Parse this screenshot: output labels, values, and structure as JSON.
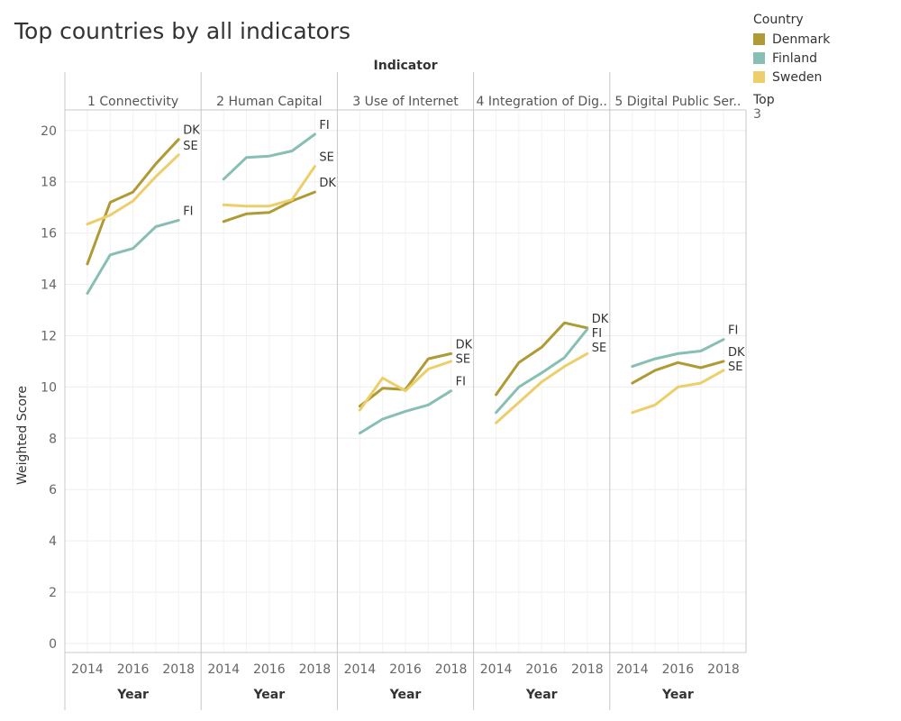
{
  "title": "Top countries by all indicators",
  "legend": {
    "title": "Country",
    "items": [
      {
        "name": "Denmark",
        "color": "#b09a35"
      },
      {
        "name": "Finland",
        "color": "#87bfb5"
      },
      {
        "name": "Sweden",
        "color": "#eccf6b"
      }
    ],
    "top_label": "Top",
    "top_value": "3"
  },
  "chart_data": {
    "type": "line",
    "column_header": "Indicator",
    "ylabel": "Weighted Score",
    "xlabel": "Year",
    "ylim": [
      0,
      20.8
    ],
    "yticks": [
      0,
      2,
      4,
      6,
      8,
      10,
      12,
      14,
      16,
      18,
      20
    ],
    "x": [
      2014,
      2015,
      2016,
      2017,
      2018
    ],
    "xticks": [
      2014,
      2016,
      2018
    ],
    "grid": true,
    "colors": {
      "DK": "#b09a35",
      "FI": "#87bfb5",
      "SE": "#eccf6b"
    },
    "panels": [
      {
        "label": "1 Connectivity",
        "series": [
          {
            "code": "DK",
            "values": [
              14.8,
              17.2,
              17.6,
              18.7,
              19.65
            ]
          },
          {
            "code": "FI",
            "values": [
              13.65,
              15.15,
              15.4,
              16.25,
              16.5
            ]
          },
          {
            "code": "SE",
            "values": [
              16.35,
              16.7,
              17.25,
              18.2,
              19.05
            ]
          }
        ]
      },
      {
        "label": "2 Human Capital",
        "series": [
          {
            "code": "DK",
            "values": [
              16.45,
              16.75,
              16.8,
              17.25,
              17.6
            ]
          },
          {
            "code": "FI",
            "values": [
              18.1,
              18.95,
              19.0,
              19.2,
              19.85
            ]
          },
          {
            "code": "SE",
            "values": [
              17.1,
              17.05,
              17.05,
              17.3,
              18.6
            ]
          }
        ]
      },
      {
        "label": "3 Use of Internet",
        "series": [
          {
            "code": "DK",
            "values": [
              9.25,
              9.95,
              9.9,
              11.1,
              11.3
            ]
          },
          {
            "code": "FI",
            "values": [
              8.2,
              8.75,
              9.05,
              9.3,
              9.85
            ]
          },
          {
            "code": "SE",
            "values": [
              9.1,
              10.35,
              9.85,
              10.7,
              11.0
            ]
          }
        ]
      },
      {
        "label": "4 Integration of Dig..",
        "series": [
          {
            "code": "DK",
            "values": [
              9.7,
              10.95,
              11.55,
              12.5,
              12.3
            ]
          },
          {
            "code": "FI",
            "values": [
              9.0,
              10.0,
              10.55,
              11.15,
              12.25
            ]
          },
          {
            "code": "SE",
            "values": [
              8.6,
              9.4,
              10.2,
              10.8,
              11.3
            ]
          }
        ]
      },
      {
        "label": "5 Digital Public Ser..",
        "series": [
          {
            "code": "DK",
            "values": [
              10.15,
              10.65,
              10.95,
              10.75,
              11.0
            ]
          },
          {
            "code": "FI",
            "values": [
              10.8,
              11.1,
              11.3,
              11.4,
              11.85
            ]
          },
          {
            "code": "SE",
            "values": [
              9.0,
              9.3,
              10.0,
              10.15,
              10.65
            ]
          }
        ]
      }
    ]
  }
}
